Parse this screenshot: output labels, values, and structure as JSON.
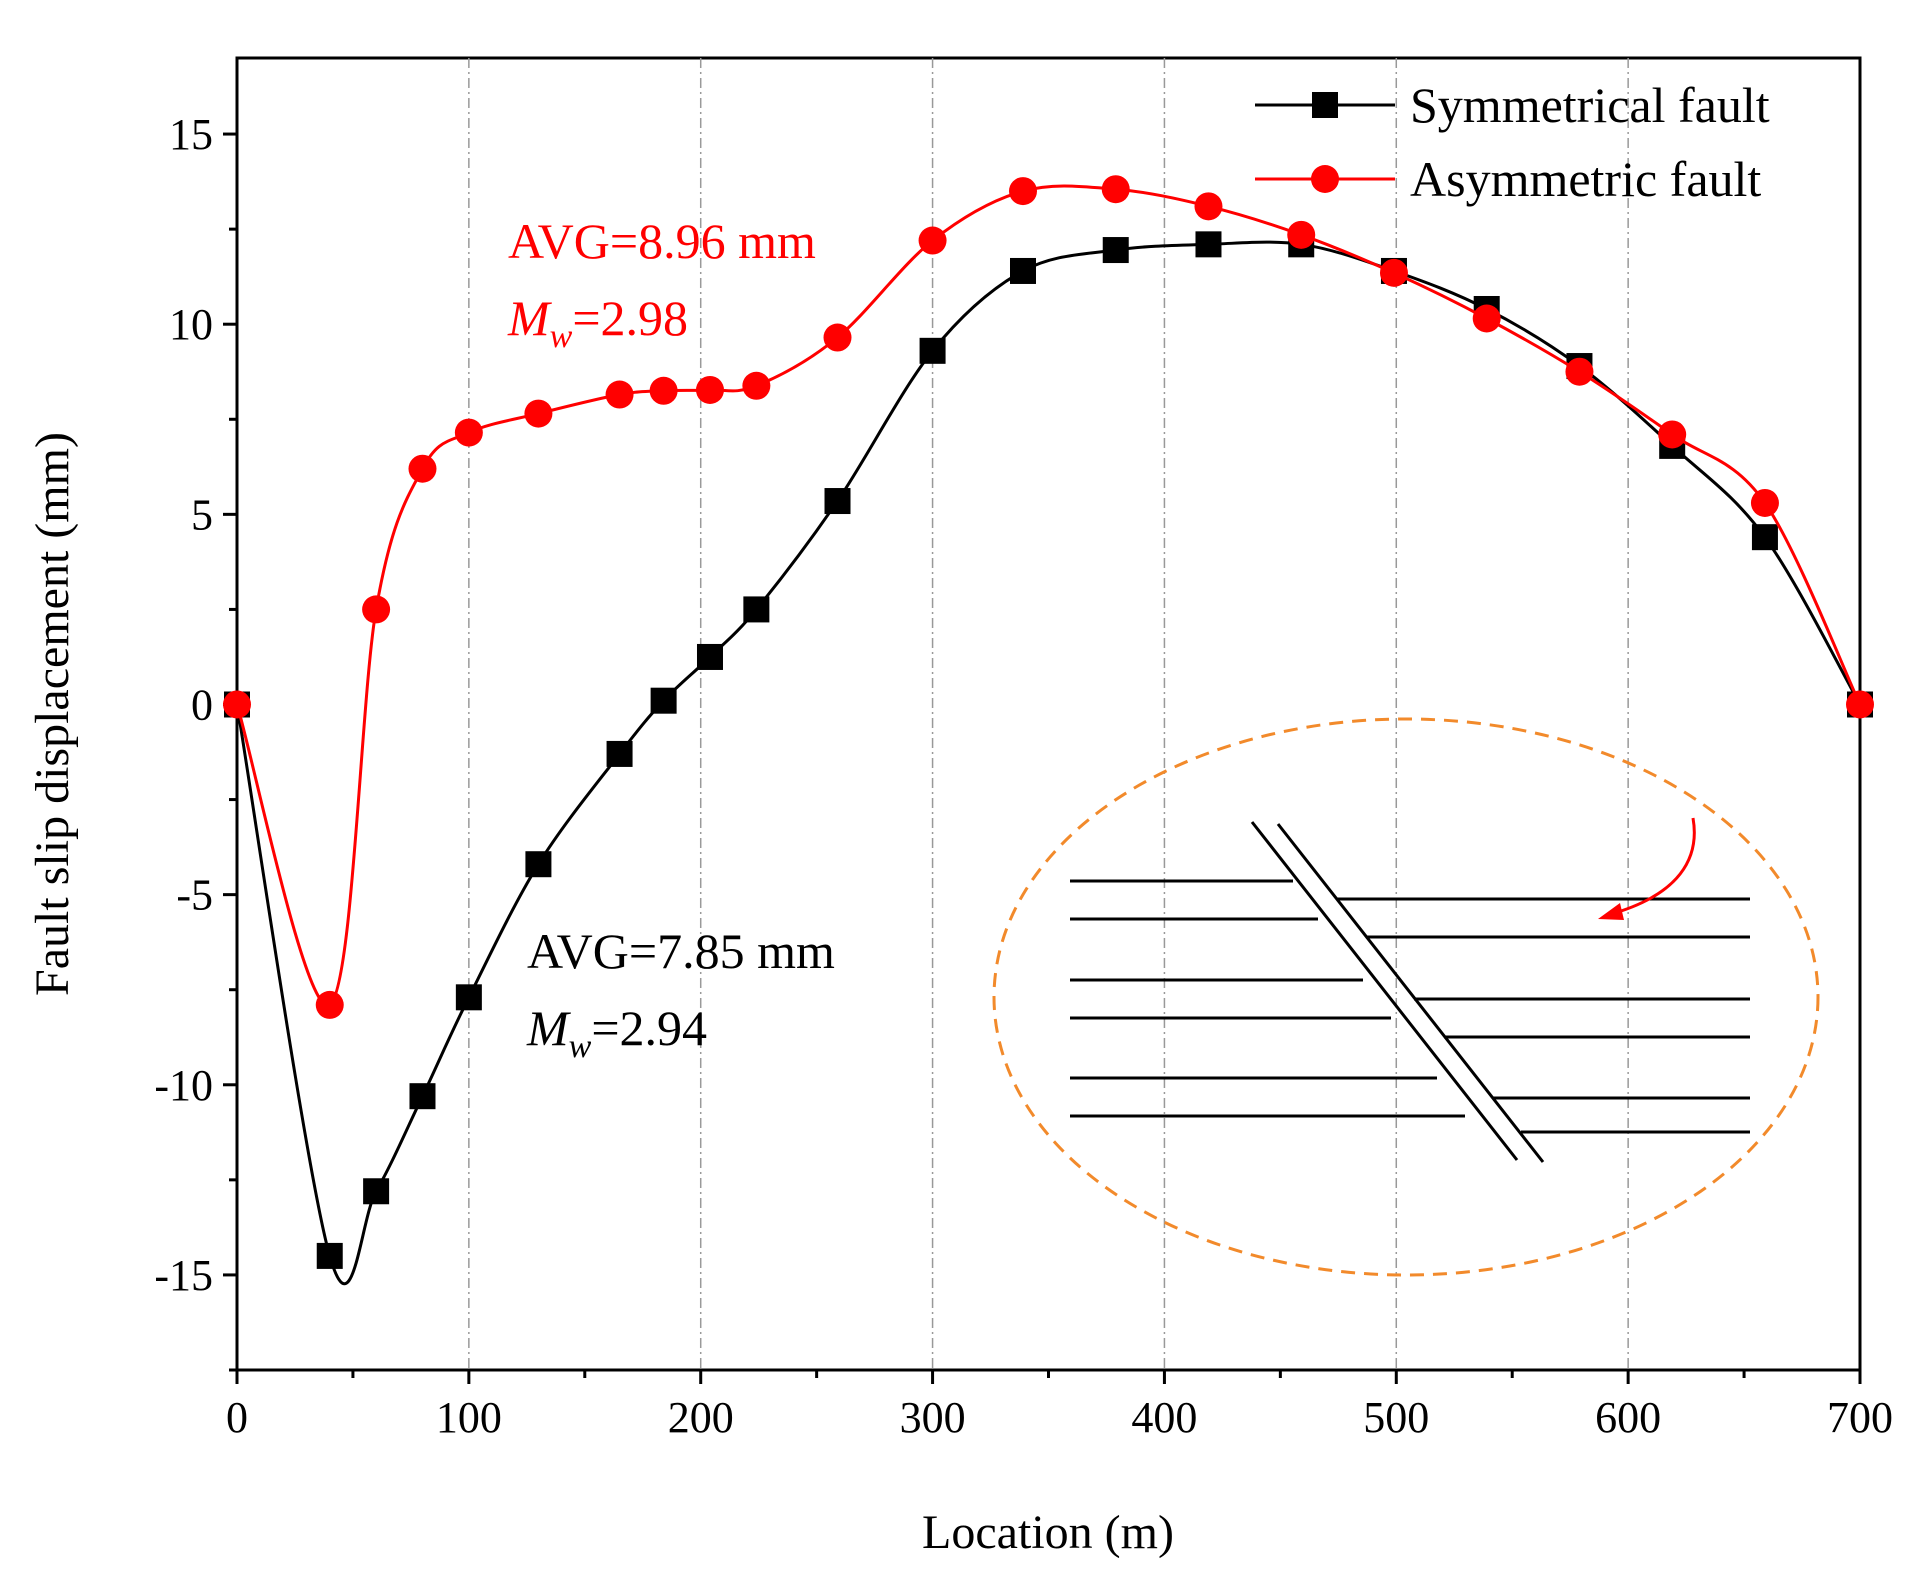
{
  "chart_data": {
    "type": "line",
    "title": "",
    "xlabel": "Location (m)",
    "ylabel": "Fault slip displacement (mm)",
    "xlim": [
      0,
      700
    ],
    "ylim": [
      -17.5,
      17
    ],
    "xticks": [
      0,
      100,
      200,
      300,
      400,
      500,
      600,
      700
    ],
    "yticks": [
      -15,
      -10,
      -5,
      0,
      5,
      10,
      15
    ],
    "x_gridlines": [
      100,
      200,
      300,
      400,
      500,
      600
    ],
    "legend_position": "top-right",
    "series": [
      {
        "name": "Symmetrical fault",
        "color": "#000000",
        "marker": "square",
        "x": [
          0,
          40,
          60,
          80,
          100,
          130,
          165,
          184,
          204,
          224,
          259,
          300,
          339,
          379,
          419,
          459,
          499,
          539,
          579,
          619,
          659,
          700
        ],
        "y": [
          0,
          -14.5,
          -12.8,
          -10.3,
          -7.7,
          -4.2,
          -1.3,
          0.1,
          1.25,
          2.5,
          5.35,
          9.3,
          11.4,
          11.95,
          12.1,
          12.1,
          11.4,
          10.4,
          8.9,
          6.8,
          4.4,
          0
        ]
      },
      {
        "name": "Asymmetric fault",
        "color": "#ff0000",
        "marker": "circle",
        "x": [
          0,
          40,
          60,
          80,
          100,
          130,
          165,
          184,
          204,
          224,
          259,
          300,
          339,
          379,
          419,
          459,
          499,
          539,
          579,
          619,
          659,
          700
        ],
        "y": [
          0,
          -7.9,
          2.5,
          6.2,
          7.15,
          7.65,
          8.15,
          8.25,
          8.27,
          8.38,
          9.65,
          12.2,
          13.5,
          13.55,
          13.1,
          12.35,
          11.35,
          10.15,
          8.75,
          7.1,
          5.3,
          0
        ]
      }
    ],
    "annotations": [
      {
        "avg_text": "AVG=8.96 mm",
        "mw_symbol": "M",
        "mw_subscript": "w",
        "mw_value": "=2.98",
        "color": "#ff0000"
      },
      {
        "avg_text": "AVG=7.85 mm",
        "mw_symbol": "M",
        "mw_subscript": "w",
        "mw_value": "=2.94",
        "color": "#000000"
      }
    ]
  }
}
